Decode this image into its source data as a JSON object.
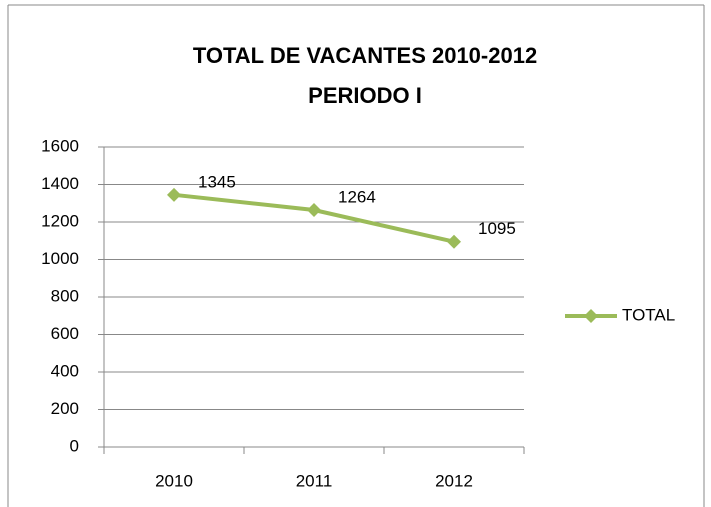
{
  "chart_data": {
    "type": "line",
    "title": "TOTAL DE VACANTES 2010-2012",
    "subtitle": "PERIODO I",
    "categories": [
      "2010",
      "2011",
      "2012"
    ],
    "series": [
      {
        "name": "TOTAL",
        "color": "#9bbb59",
        "values": [
          1345,
          1264,
          1095
        ]
      }
    ],
    "ylim": [
      0,
      1600
    ],
    "yticks": [
      0,
      200,
      400,
      600,
      800,
      1000,
      1200,
      1400,
      1600
    ],
    "grid": true,
    "legend": "right",
    "data_labels": true
  }
}
